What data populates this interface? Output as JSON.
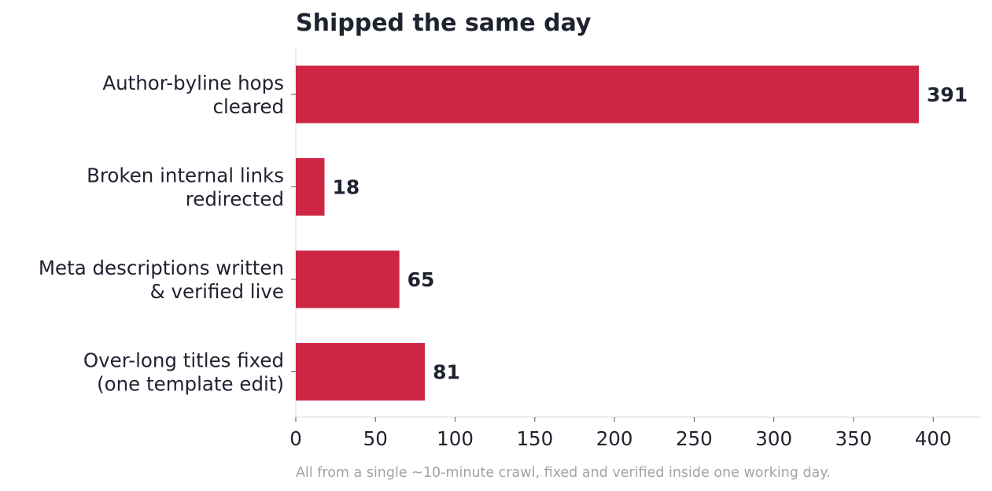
{
  "chart_data": {
    "type": "bar",
    "orientation": "horizontal",
    "title": "Shipped the same day",
    "categories": [
      [
        "Author-byline hops",
        "cleared"
      ],
      [
        "Broken internal links",
        "redirected"
      ],
      [
        "Meta descriptions written",
        "& verified live"
      ],
      [
        "Over-long titles fixed",
        "(one template edit)"
      ]
    ],
    "values": [
      391,
      18,
      65,
      81
    ],
    "value_labels": [
      "391",
      "18",
      "65",
      "81"
    ],
    "xlim": [
      0,
      430
    ],
    "xticks": [
      0,
      50,
      100,
      150,
      200,
      250,
      300,
      350,
      400
    ],
    "xlabel": "",
    "ylabel": "",
    "grid": false,
    "bar_color": "#cd2644",
    "text_color": "#1f2330",
    "footnote": "All from a single ~10-minute crawl, fixed and verified inside one working day."
  }
}
